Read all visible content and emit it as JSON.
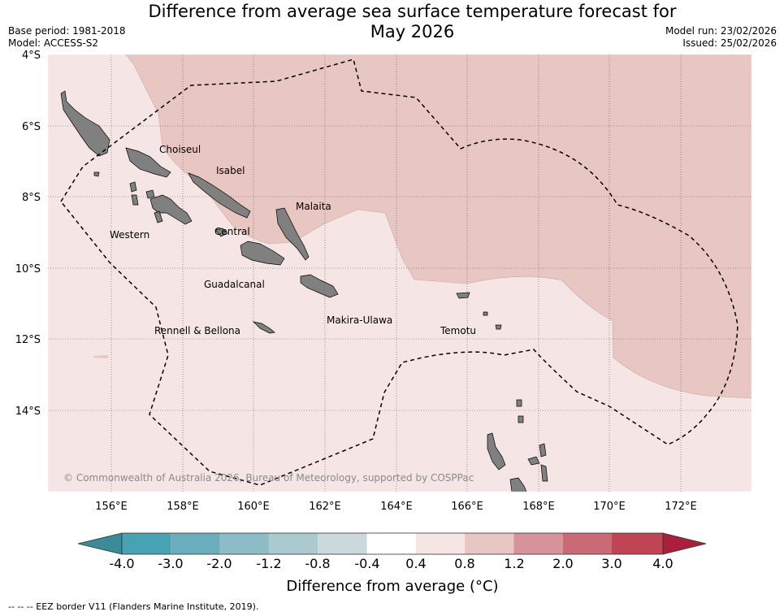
{
  "header": {
    "title_line1": "Difference from average sea surface temperature forecast for",
    "title_line2": "May 2026",
    "base_period": "Base period: 1981-2018",
    "model": "Model: ACCESS-S2",
    "model_run": "Model run: 23/02/2026",
    "issued": "Issued: 25/02/2026"
  },
  "map": {
    "lat_labels": [
      "4°S",
      "6°S",
      "8°S",
      "10°S",
      "12°S",
      "14°S"
    ],
    "lon_labels": [
      "156°E",
      "158°E",
      "160°E",
      "162°E",
      "164°E",
      "166°E",
      "168°E",
      "170°E",
      "172°E"
    ],
    "province_labels": [
      "Choiseul",
      "Isabel",
      "Malaita",
      "Western",
      "Central",
      "Guadalcanal",
      "Makira-Ulawa",
      "Temotu",
      "Rennell & Bellona"
    ],
    "copyright": "© Commonwealth of Australia 2026, Bureau of Meteorology, supported by COSPPac",
    "anomaly_classes_shown": [
      "0.4 to 0.8 °C",
      "0.8 to 1.2 °C"
    ]
  },
  "colorbar": {
    "ticks": [
      "-4.0",
      "-3.0",
      "-2.0",
      "-1.2",
      "-0.8",
      "-0.4",
      "0.4",
      "0.8",
      "1.2",
      "2.0",
      "3.0",
      "4.0"
    ],
    "colors": [
      "#3b8b99",
      "#47a3b3",
      "#6aaebd",
      "#8dbcc6",
      "#aacacd",
      "#cbd9dd",
      "#ffffff",
      "#f5e6e5",
      "#e8c6c2",
      "#d6939a",
      "#c96a74",
      "#bf4454",
      "#a91f3c"
    ],
    "label": "Difference from average (°C)"
  },
  "footer": {
    "legend": "-- -- -- EEZ border V11 (Flanders Marine Institute, 2019)."
  }
}
